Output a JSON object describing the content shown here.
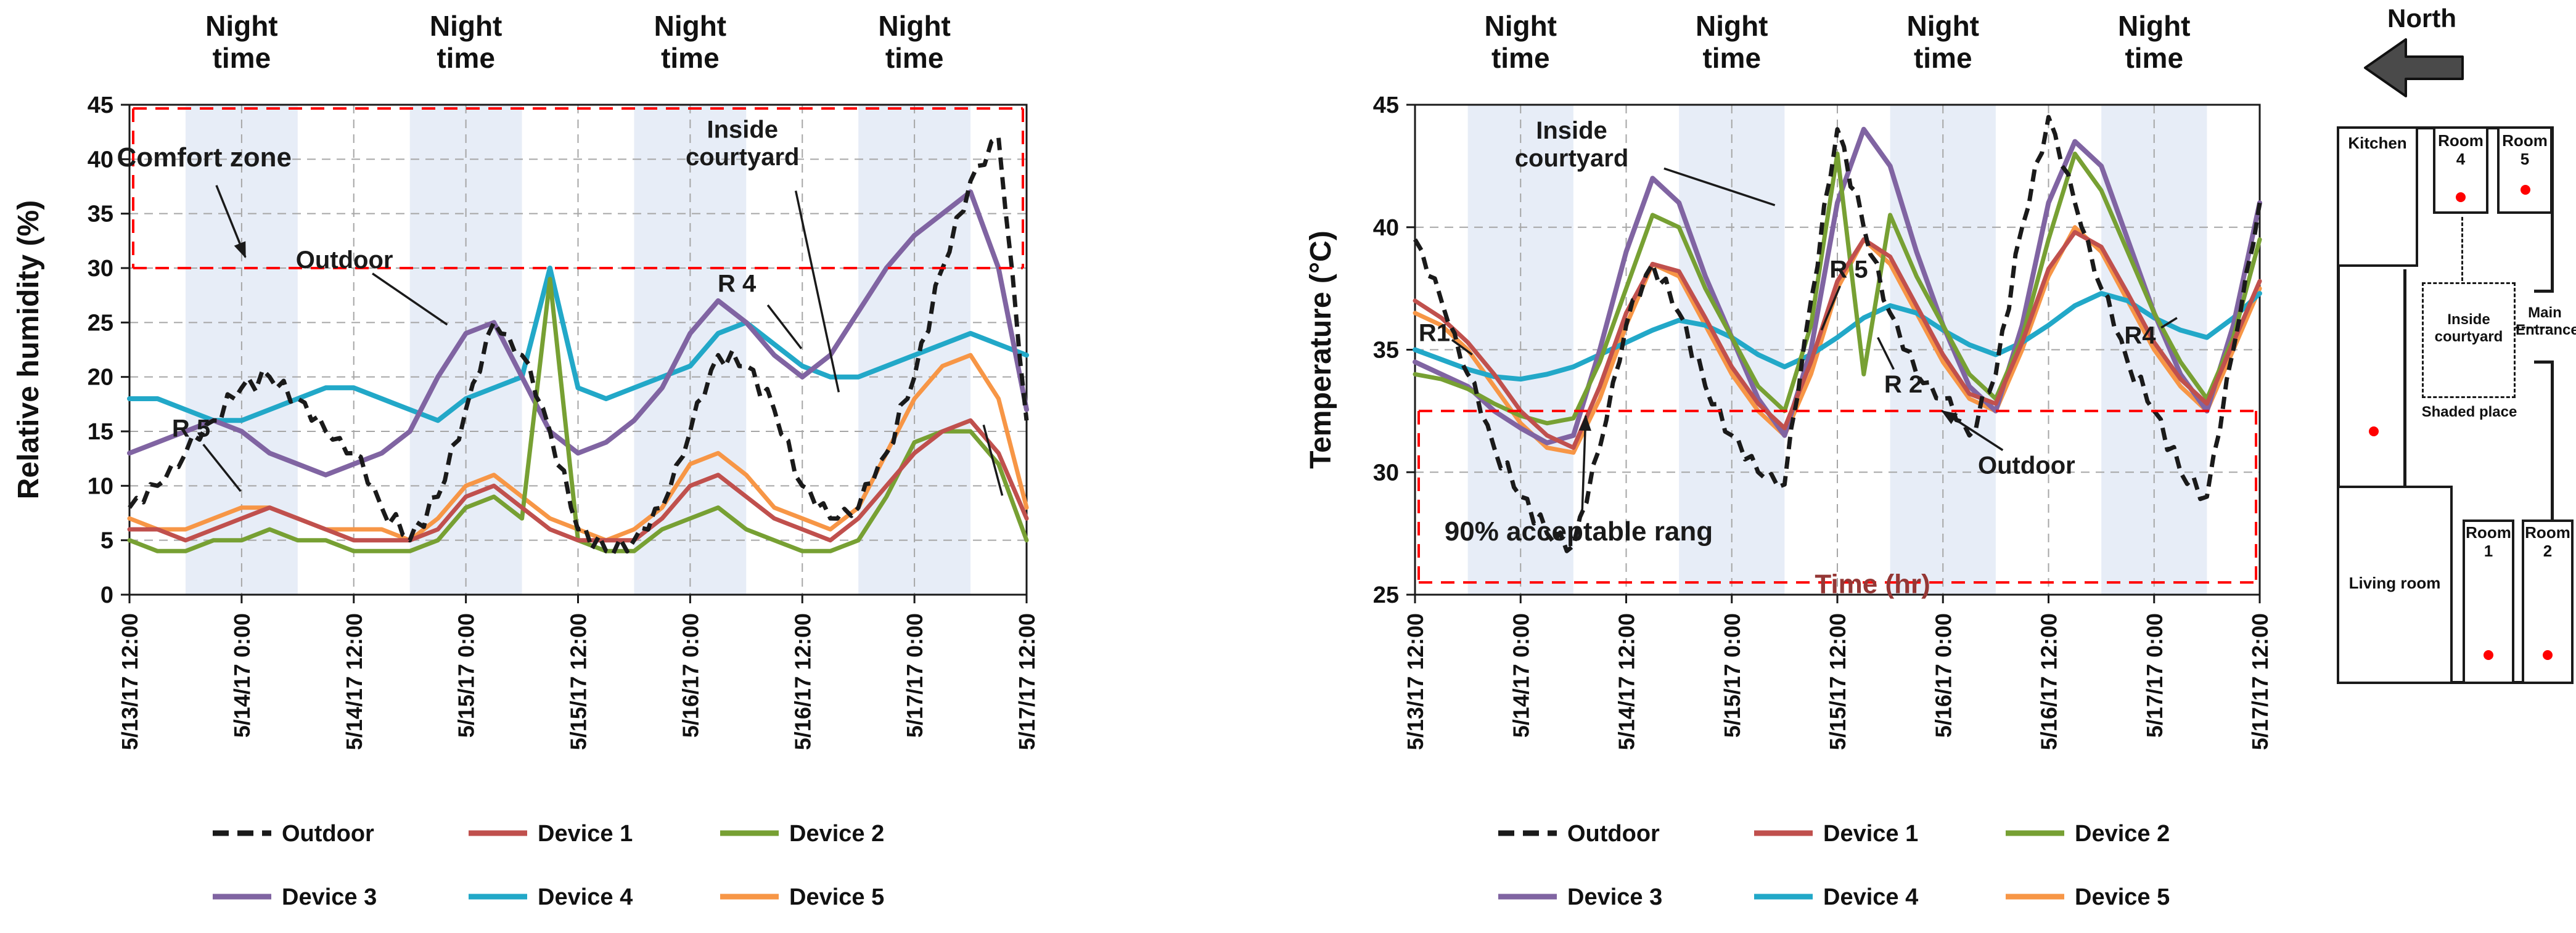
{
  "style": {
    "night_band_color": "#e7edf7",
    "zone_color": "#ff0000",
    "grid_color": "#a6a6a6",
    "axis_color": "#1a1a1a"
  },
  "chart_data": [
    {
      "id": "humidity",
      "type": "line",
      "title": "",
      "ylabel": "Relative humidity (%)",
      "xlabel": "",
      "ylim": [
        0,
        45
      ],
      "ytick_step": 5,
      "xlim": [
        0,
        96
      ],
      "x_ticks": [
        0,
        12,
        24,
        36,
        48,
        60,
        72,
        84,
        96
      ],
      "x_tick_labels": [
        "5/13/17 12:00",
        "5/14/17 0:00",
        "5/14/17 12:00",
        "5/15/17 0:00",
        "5/15/17 12:00",
        "5/16/17 0:00",
        "5/16/17 12:00",
        "5/17/17 0:00",
        "5/17/17 12:00"
      ],
      "night_bands": [
        [
          6,
          18
        ],
        [
          30,
          42
        ],
        [
          54,
          66
        ],
        [
          78,
          90
        ]
      ],
      "night_label_lines": [
        "Night",
        "time"
      ],
      "night_label_centers": [
        12,
        36,
        60,
        84
      ],
      "highlight_zone": {
        "label": "Comfort zone",
        "range": [
          30,
          45
        ]
      },
      "x": [
        0,
        3,
        6,
        9,
        12,
        15,
        18,
        21,
        24,
        27,
        30,
        33,
        36,
        39,
        42,
        45,
        48,
        51,
        54,
        57,
        60,
        63,
        66,
        69,
        72,
        75,
        78,
        81,
        84,
        87,
        90,
        93,
        96
      ],
      "series": [
        {
          "name": "Outdoor",
          "color": "#1a1a1a",
          "dash": true,
          "noisy": true,
          "noise_amp": 0.9,
          "width": 7,
          "values": [
            8,
            10,
            13,
            16,
            19,
            20,
            18,
            15,
            13,
            8,
            5,
            9,
            17,
            25,
            22,
            15,
            6,
            4,
            5,
            8,
            15,
            22,
            21,
            17,
            10,
            7,
            8,
            13,
            20,
            30,
            38,
            42,
            16
          ]
        },
        {
          "name": "Device 1",
          "color": "#c0504d",
          "width": 7,
          "values": [
            6,
            6,
            5,
            6,
            7,
            8,
            7,
            6,
            5,
            5,
            5,
            6,
            9,
            10,
            8,
            6,
            5,
            5,
            5,
            7,
            10,
            11,
            9,
            7,
            6,
            5,
            7,
            10,
            13,
            15,
            16,
            13,
            7
          ]
        },
        {
          "name": "Device 2",
          "color": "#77a033",
          "width": 7,
          "values": [
            5,
            4,
            4,
            5,
            5,
            6,
            5,
            5,
            4,
            4,
            4,
            5,
            8,
            9,
            7,
            29,
            5,
            4,
            4,
            6,
            7,
            8,
            6,
            5,
            4,
            4,
            5,
            9,
            14,
            15,
            15,
            12,
            5
          ]
        },
        {
          "name": "Device 3",
          "color": "#8064a2",
          "width": 8,
          "values": [
            13,
            14,
            15,
            16,
            15,
            13,
            12,
            11,
            12,
            13,
            15,
            20,
            24,
            25,
            20,
            15,
            13,
            14,
            16,
            19,
            24,
            27,
            25,
            22,
            20,
            22,
            26,
            30,
            33,
            35,
            37,
            30,
            17
          ]
        },
        {
          "name": "Device 4",
          "color": "#22a8c8",
          "width": 8,
          "values": [
            18,
            18,
            17,
            16,
            16,
            17,
            18,
            19,
            19,
            18,
            17,
            16,
            18,
            19,
            20,
            30,
            19,
            18,
            19,
            20,
            21,
            24,
            25,
            23,
            21,
            20,
            20,
            21,
            22,
            23,
            24,
            23,
            22
          ]
        },
        {
          "name": "Device 5",
          "color": "#f79646",
          "width": 7,
          "values": [
            7,
            6,
            6,
            7,
            8,
            8,
            7,
            6,
            6,
            6,
            5,
            7,
            10,
            11,
            9,
            7,
            6,
            5,
            6,
            8,
            12,
            13,
            11,
            8,
            7,
            6,
            8,
            13,
            18,
            21,
            22,
            18,
            8
          ]
        }
      ],
      "annotations": [
        {
          "text": "Comfort zone",
          "x": 8,
          "y": 40.2,
          "size": 44,
          "arrow": true,
          "lines": [
            [
              9.3,
              37.6,
              12.4,
              31.0
            ]
          ]
        },
        {
          "text": "Outdoor",
          "x": 23,
          "y": 30.8,
          "size": 40,
          "arrow": false,
          "lines": [
            [
              26,
              29.5,
              34,
              24.8
            ]
          ]
        },
        {
          "text": "R 5",
          "x": 6.6,
          "y": 15.3,
          "size": 40,
          "arrow": false,
          "lines": [
            [
              7.9,
              13.8,
              11.9,
              9.5
            ]
          ]
        },
        {
          "text": "Inside\ncourtyard",
          "x": 65.6,
          "y": 41.5,
          "size": 40,
          "arrow": false,
          "lines": [
            [
              71.3,
              37.1,
              75.9,
              18.6
            ]
          ]
        },
        {
          "text": "R 4",
          "x": 65,
          "y": 28.6,
          "size": 40,
          "arrow": false,
          "lines": [
            [
              68.3,
              26.6,
              71.9,
              22.6
            ]
          ]
        },
        {
          "text": "",
          "x": 0,
          "y": 0,
          "arrow": false,
          "lines": [
            [
              91.4,
              15.6,
              93.4,
              9.1
            ]
          ]
        }
      ]
    },
    {
      "id": "temperature",
      "type": "line",
      "title": "",
      "ylabel": "Temperature  (°C)",
      "xlabel": "Time (hr)",
      "ylim": [
        25,
        45
      ],
      "ytick_step": 5,
      "xlim": [
        0,
        96
      ],
      "x_ticks": [
        0,
        12,
        24,
        36,
        48,
        60,
        72,
        84,
        96
      ],
      "x_tick_labels": [
        "5/13/17 12:00",
        "5/14/17 0:00",
        "5/14/17 12:00",
        "5/15/17 0:00",
        "5/15/17 12:00",
        "5/16/17 0:00",
        "5/16/17 12:00",
        "5/17/17 0:00",
        "5/17/17 12:00"
      ],
      "night_bands": [
        [
          6,
          18
        ],
        [
          30,
          42
        ],
        [
          54,
          66
        ],
        [
          78,
          90
        ]
      ],
      "night_label_lines": [
        "Night",
        "time"
      ],
      "night_label_centers": [
        12,
        36,
        60,
        84
      ],
      "highlight_zone": {
        "label": "90% acceptable rang",
        "range": [
          25.5,
          32.5
        ]
      },
      "x": [
        0,
        3,
        6,
        9,
        12,
        15,
        18,
        21,
        24,
        27,
        30,
        33,
        36,
        39,
        42,
        45,
        48,
        51,
        54,
        57,
        60,
        63,
        66,
        69,
        72,
        75,
        78,
        81,
        84,
        87,
        90,
        93,
        96
      ],
      "series": [
        {
          "name": "Outdoor",
          "color": "#1a1a1a",
          "dash": true,
          "noisy": true,
          "noise_amp": 0.4,
          "width": 7,
          "values": [
            39.5,
            37,
            34,
            31,
            29,
            27.5,
            27,
            31,
            36,
            38.5,
            36.5,
            33.5,
            31.5,
            30,
            29.5,
            37,
            44,
            40,
            36.5,
            34,
            33,
            31.5,
            34,
            40,
            44.5,
            41,
            37.5,
            34.5,
            32.5,
            30,
            29,
            35,
            41
          ]
        },
        {
          "name": "Device 1",
          "color": "#c0504d",
          "width": 7,
          "values": [
            37,
            36.3,
            35.3,
            34,
            32.5,
            31.5,
            31,
            33.5,
            36.5,
            38.5,
            38.2,
            36.3,
            34.3,
            32.8,
            31.8,
            34.5,
            37.8,
            39.5,
            38.8,
            36.8,
            34.8,
            33.2,
            32.8,
            35.3,
            38.3,
            39.8,
            39.2,
            37.3,
            35.3,
            33.8,
            32.8,
            35.3,
            37.8
          ]
        },
        {
          "name": "Device 2",
          "color": "#77a033",
          "width": 7,
          "values": [
            34,
            33.8,
            33.4,
            32.8,
            32.3,
            32,
            32.2,
            34.5,
            37.5,
            40.5,
            40,
            37.5,
            35.5,
            33.5,
            32.5,
            36,
            43,
            34,
            40.5,
            38,
            36,
            34,
            33,
            35.5,
            39.5,
            43,
            41.5,
            39,
            36.5,
            34.5,
            33,
            35.5,
            39.5
          ]
        },
        {
          "name": "Device 3",
          "color": "#8064a2",
          "width": 8,
          "values": [
            34.5,
            34,
            33.5,
            32.5,
            31.8,
            31.2,
            31.5,
            35,
            39,
            42,
            41,
            38,
            35.5,
            33,
            31.5,
            35,
            41,
            44,
            42.5,
            39,
            36,
            33.5,
            32.5,
            36,
            41,
            43.5,
            42.5,
            39.5,
            36.5,
            34,
            32.5,
            36,
            41
          ]
        },
        {
          "name": "Device 4",
          "color": "#22a8c8",
          "width": 8,
          "values": [
            35,
            34.6,
            34.2,
            33.9,
            33.8,
            34,
            34.3,
            34.8,
            35.3,
            35.8,
            36.2,
            36,
            35.5,
            34.8,
            34.3,
            34.8,
            35.5,
            36.3,
            36.8,
            36.5,
            35.8,
            35.2,
            34.8,
            35.3,
            36,
            36.8,
            37.3,
            37,
            36.3,
            35.8,
            35.5,
            36.3,
            37.3
          ]
        },
        {
          "name": "Device 5",
          "color": "#f79646",
          "width": 7,
          "values": [
            36.5,
            36,
            35,
            33.5,
            32,
            31,
            30.8,
            33,
            36,
            38.5,
            38,
            36,
            34,
            32.5,
            31.5,
            34,
            37.5,
            39.5,
            38.5,
            36.5,
            34.5,
            33,
            32.5,
            35,
            38,
            40,
            39,
            37,
            35,
            33.5,
            32.5,
            35,
            37.5
          ]
        }
      ],
      "annotations": [
        {
          "text": "Inside\ncourtyard",
          "x": 17.8,
          "y": 43.4,
          "size": 40,
          "arrow": false,
          "lines": [
            [
              28.3,
              42.4,
              40.9,
              40.9
            ]
          ]
        },
        {
          "text": "R 5",
          "x": 49.3,
          "y": 38.3,
          "size": 40,
          "arrow": false,
          "lines": [
            [
              48.3,
              37.6,
              46.2,
              35.8
            ]
          ]
        },
        {
          "text": "R1",
          "x": 2.2,
          "y": 35.7,
          "size": 40,
          "arrow": false,
          "lines": [
            [
              4.2,
              35.4,
              6.5,
              34.8
            ]
          ]
        },
        {
          "text": "R 2",
          "x": 55.5,
          "y": 33.6,
          "size": 40,
          "arrow": false,
          "lines": [
            [
              54.4,
              34.2,
              52.6,
              35.5
            ]
          ]
        },
        {
          "text": "R4",
          "x": 82.4,
          "y": 35.6,
          "size": 40,
          "arrow": false,
          "lines": [
            [
              84.8,
              35.9,
              86.6,
              36.3
            ]
          ]
        },
        {
          "text": "Outdoor",
          "x": 69.5,
          "y": 30.3,
          "size": 40,
          "arrow": true,
          "lines": [
            [
              66.8,
              30.9,
              59.9,
              32.5
            ]
          ]
        },
        {
          "text": "90% acceptable rang",
          "x": 18.6,
          "y": 27.6,
          "size": 44,
          "arrow": true,
          "lines": [
            [
              19.0,
              28.4,
              19.4,
              32.3
            ]
          ]
        },
        {
          "text": "Time (hr)",
          "x": 52,
          "y": 25.45,
          "size": 44,
          "color": "#953735",
          "arrow": false,
          "lines": []
        }
      ]
    }
  ],
  "floorplan": {
    "north_label": "North",
    "device_dot_color": "#ff0000",
    "rooms": [
      {
        "id": "kitchen",
        "label": "Kitchen"
      },
      {
        "id": "room-4",
        "label": "Room 4"
      },
      {
        "id": "room-5",
        "label": "Room 5"
      },
      {
        "id": "main-entrance",
        "label": "Main Entrance"
      },
      {
        "id": "inside-courtyard",
        "label": "Inside courtyard"
      },
      {
        "id": "shaded-place",
        "label": "Shaded place"
      },
      {
        "id": "living-room",
        "label": "Living room"
      },
      {
        "id": "room-1",
        "label": "Room 1"
      },
      {
        "id": "room-2",
        "label": "Room 2"
      }
    ]
  }
}
